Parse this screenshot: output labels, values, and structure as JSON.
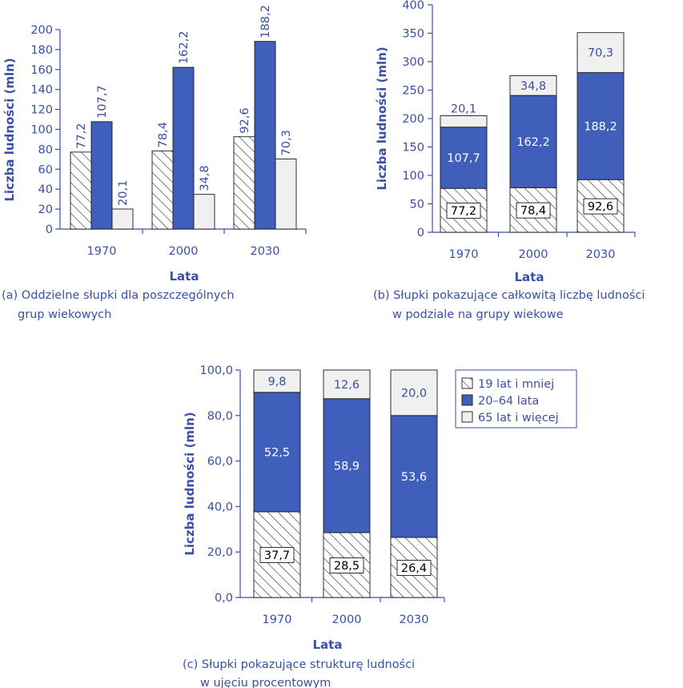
{
  "colors": {
    "young": "#ffffff",
    "adult": "#3f5fba",
    "old": "#f0f0f0",
    "axis": "#3a4fa6",
    "hatch": "#1a1a1a"
  },
  "chart_data": [
    {
      "type": "bar",
      "title": "",
      "xlabel": "Lata",
      "ylabel": "Liczba ludności (mln)",
      "ylim": [
        0,
        200
      ],
      "yticks": [
        "0",
        "20",
        "40",
        "60",
        "80",
        "100",
        "120",
        "140",
        "160",
        "180",
        "200"
      ],
      "categories": [
        "1970",
        "2000",
        "2030"
      ],
      "series": [
        {
          "name": "19 lat i mniej",
          "values": [
            77.2,
            78.4,
            92.6
          ],
          "labels": [
            "77,2",
            "78,4",
            "92,6"
          ]
        },
        {
          "name": "20–64 lata",
          "values": [
            107.7,
            162.2,
            188.2
          ],
          "labels": [
            "107,7",
            "162,2",
            "188,2"
          ]
        },
        {
          "name": "65 lat i więcej",
          "values": [
            20.1,
            34.8,
            70.3
          ],
          "labels": [
            "20,1",
            "34,8",
            "70,3"
          ]
        }
      ],
      "caption_lines": [
        "(a) Oddzielne słupki dla poszczególnych",
        "grup wiekowych"
      ]
    },
    {
      "type": "bar",
      "stacked": true,
      "title": "",
      "xlabel": "Lata",
      "ylabel": "Liczba ludności (mln)",
      "ylim": [
        0,
        400
      ],
      "yticks": [
        "0",
        "50",
        "100",
        "150",
        "200",
        "250",
        "300",
        "350",
        "400"
      ],
      "categories": [
        "1970",
        "2000",
        "2030"
      ],
      "series": [
        {
          "name": "19 lat i mniej",
          "values": [
            77.2,
            78.4,
            92.6
          ],
          "labels": [
            "77,2",
            "78,4",
            "92,6"
          ]
        },
        {
          "name": "20–64 lata",
          "values": [
            107.7,
            162.2,
            188.2
          ],
          "labels": [
            "107,7",
            "162,2",
            "188,2"
          ]
        },
        {
          "name": "65 lat i więcej",
          "values": [
            20.1,
            34.8,
            70.3
          ],
          "labels": [
            "20,1",
            "34,8",
            "70,3"
          ]
        }
      ],
      "caption_lines": [
        "(b) Słupki pokazujące całkowitą liczbę ludności",
        "w podziale na grupy wiekowe"
      ]
    },
    {
      "type": "bar",
      "stacked": true,
      "title": "",
      "xlabel": "Lata",
      "ylabel": "Liczba ludności (mln)",
      "ylim": [
        0,
        100
      ],
      "yticks": [
        "0,0",
        "20,0",
        "40,0",
        "60,0",
        "80,0",
        "100,0"
      ],
      "categories": [
        "1970",
        "2000",
        "2030"
      ],
      "series": [
        {
          "name": "19 lat i mniej",
          "values": [
            37.7,
            28.5,
            26.4
          ],
          "labels": [
            "37,7",
            "28,5",
            "26,4"
          ]
        },
        {
          "name": "20–64 lata",
          "values": [
            52.5,
            58.9,
            53.6
          ],
          "labels": [
            "52,5",
            "58,9",
            "53,6"
          ]
        },
        {
          "name": "65 lat i więcej",
          "values": [
            9.8,
            12.6,
            20.0
          ],
          "labels": [
            "9,8",
            "12,6",
            "20,0"
          ]
        }
      ],
      "legend": {
        "placement": "right",
        "items": [
          "19 lat i mniej",
          "20–64 lata",
          "65 lat i więcej"
        ]
      },
      "caption_lines": [
        "(c) Słupki pokazujące strukturę ludności",
        "w ujęciu procentowym"
      ]
    }
  ]
}
